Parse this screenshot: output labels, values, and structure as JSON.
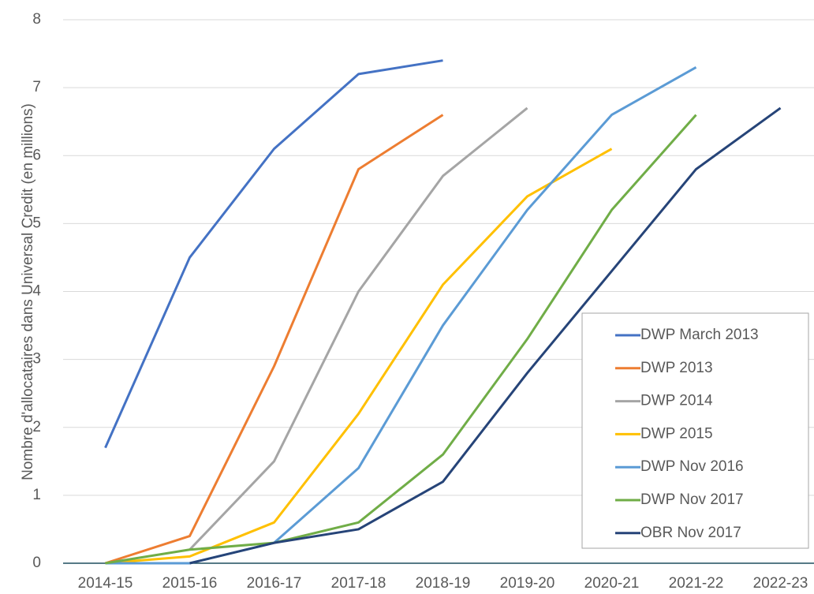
{
  "chart_data": {
    "type": "line",
    "y_label": "Nombre d'allocataires dans Universal Credit (en millions)",
    "categories": [
      "2014-15",
      "2015-16",
      "2016-17",
      "2017-18",
      "2018-19",
      "2019-20",
      "2020-21",
      "2021-22",
      "2022-23"
    ],
    "series": [
      {
        "name": "DWP March 2013",
        "color": "#4472c4",
        "values": [
          1.7,
          4.5,
          6.1,
          7.2,
          7.4,
          null,
          null,
          null,
          null
        ]
      },
      {
        "name": "DWP 2013",
        "color": "#ed7d31",
        "values": [
          0,
          0.4,
          2.9,
          5.8,
          6.6,
          null,
          null,
          null,
          null
        ]
      },
      {
        "name": "DWP 2014",
        "color": "#a5a5a5",
        "values": [
          null,
          0.2,
          1.5,
          4.0,
          5.7,
          6.7,
          null,
          null,
          null
        ]
      },
      {
        "name": "DWP 2015",
        "color": "#ffc000",
        "values": [
          0,
          0.1,
          0.6,
          2.2,
          4.1,
          5.4,
          6.1,
          null,
          null
        ]
      },
      {
        "name": "DWP Nov 2016",
        "color": "#5b9bd5",
        "values": [
          0,
          0,
          0.3,
          1.4,
          3.5,
          5.2,
          6.6,
          7.3,
          null
        ]
      },
      {
        "name": "DWP Nov 2017",
        "color": "#70ad47",
        "values": [
          0,
          0.2,
          0.3,
          0.6,
          1.6,
          3.3,
          5.2,
          6.6,
          null
        ]
      },
      {
        "name": "OBR Nov 2017",
        "color": "#264478",
        "values": [
          null,
          0,
          0.3,
          0.5,
          1.2,
          2.8,
          4.3,
          5.8,
          6.7
        ]
      }
    ],
    "ylim": [
      0,
      8
    ],
    "yticks": [
      0,
      1,
      2,
      3,
      4,
      5,
      6,
      7,
      8
    ],
    "grid": true,
    "legend": "lower right"
  }
}
